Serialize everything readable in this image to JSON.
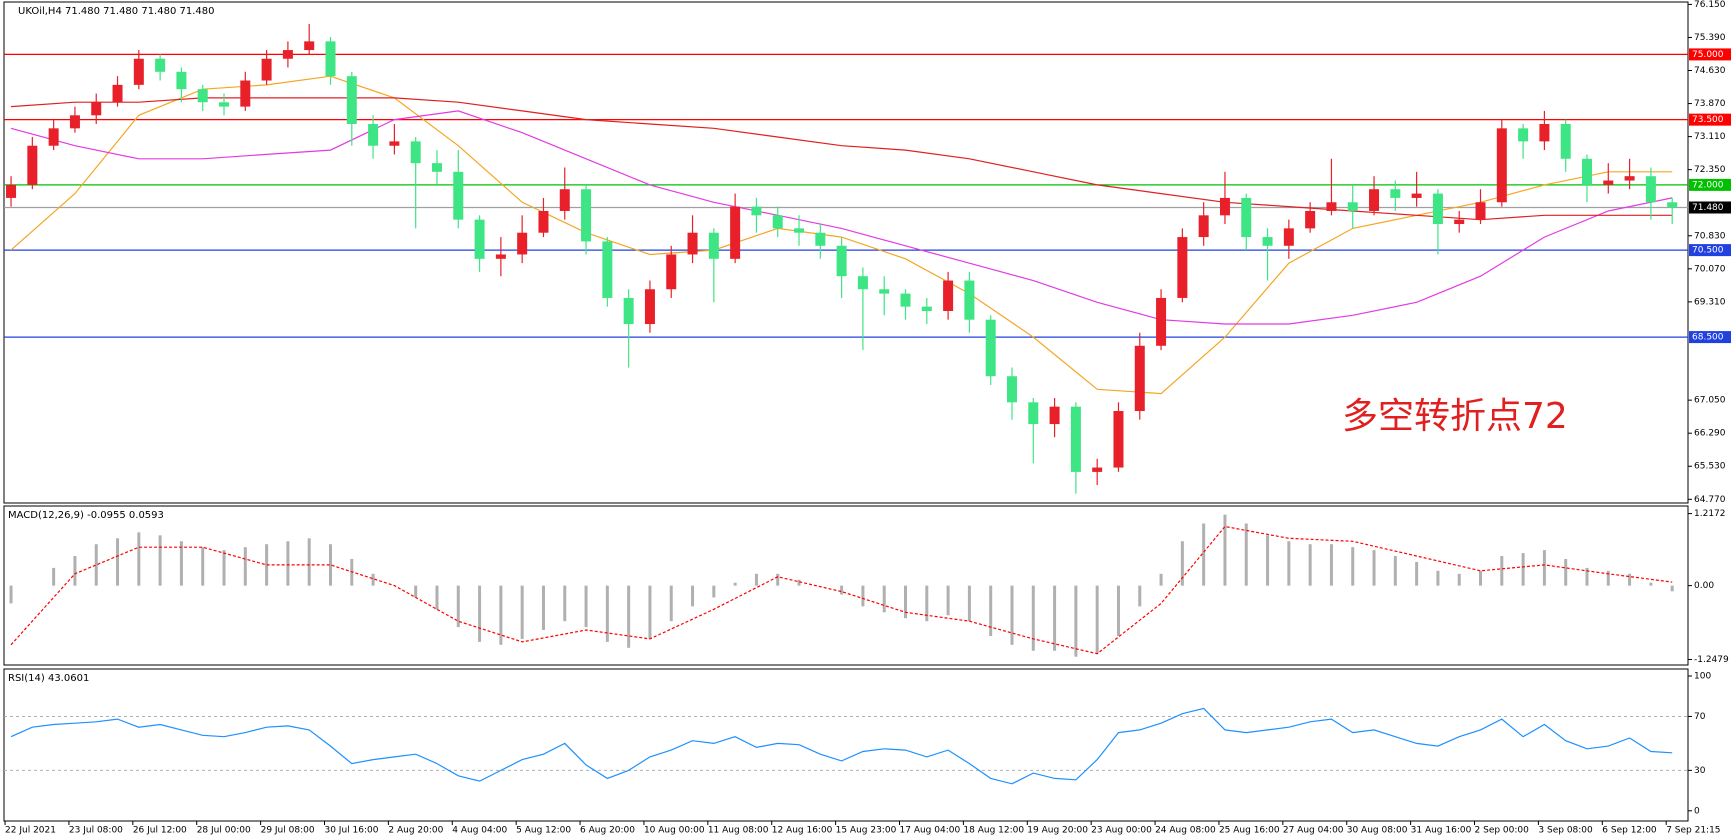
{
  "chart_data": [
    {
      "type": "candlestick",
      "title": "UKOil,H4  71.480 71.480 71.480 71.480",
      "annotation": "多空转折点72",
      "up_color": "#e8202a",
      "down_color": "#3ee584",
      "ohlc": [
        [
          71.7,
          72.2,
          71.5,
          72.0
        ],
        [
          72.0,
          73.1,
          71.9,
          72.9
        ],
        [
          72.9,
          73.5,
          72.8,
          73.3
        ],
        [
          73.3,
          73.8,
          73.2,
          73.6
        ],
        [
          73.6,
          74.1,
          73.4,
          73.9
        ],
        [
          73.9,
          74.5,
          73.8,
          74.3
        ],
        [
          74.3,
          75.1,
          74.2,
          74.9
        ],
        [
          74.9,
          75.0,
          74.4,
          74.6
        ],
        [
          74.6,
          74.7,
          73.9,
          74.2
        ],
        [
          74.2,
          74.3,
          73.7,
          73.9
        ],
        [
          73.9,
          74.1,
          73.6,
          73.8
        ],
        [
          73.8,
          74.6,
          73.7,
          74.4
        ],
        [
          74.4,
          75.1,
          74.3,
          74.9
        ],
        [
          74.9,
          75.3,
          74.7,
          75.1
        ],
        [
          75.1,
          75.7,
          75.0,
          75.3
        ],
        [
          75.3,
          75.4,
          74.3,
          74.5
        ],
        [
          74.5,
          74.6,
          72.9,
          73.4
        ],
        [
          73.4,
          73.6,
          72.6,
          72.9
        ],
        [
          72.9,
          73.4,
          72.7,
          73.0
        ],
        [
          73.0,
          73.1,
          71.0,
          72.5
        ],
        [
          72.5,
          72.8,
          72.0,
          72.3
        ],
        [
          72.3,
          72.8,
          71.0,
          71.2
        ],
        [
          71.2,
          71.3,
          70.0,
          70.3
        ],
        [
          70.3,
          70.8,
          69.9,
          70.4
        ],
        [
          70.4,
          71.3,
          70.2,
          70.9
        ],
        [
          70.9,
          71.7,
          70.8,
          71.4
        ],
        [
          71.4,
          72.4,
          71.2,
          71.9
        ],
        [
          71.9,
          72.0,
          70.4,
          70.7
        ],
        [
          70.7,
          70.8,
          69.2,
          69.4
        ],
        [
          69.4,
          69.6,
          67.8,
          68.8
        ],
        [
          68.8,
          69.8,
          68.6,
          69.6
        ],
        [
          69.6,
          70.6,
          69.4,
          70.4
        ],
        [
          70.4,
          71.3,
          70.2,
          70.9
        ],
        [
          70.9,
          71.0,
          69.3,
          70.3
        ],
        [
          70.3,
          71.8,
          70.2,
          71.5
        ],
        [
          71.5,
          71.7,
          70.9,
          71.3
        ],
        [
          71.3,
          71.5,
          70.8,
          71.0
        ],
        [
          71.0,
          71.3,
          70.6,
          70.9
        ],
        [
          70.9,
          71.1,
          70.3,
          70.6
        ],
        [
          70.6,
          70.8,
          69.4,
          69.9
        ],
        [
          69.9,
          70.1,
          68.2,
          69.6
        ],
        [
          69.6,
          69.9,
          69.0,
          69.5
        ],
        [
          69.5,
          69.6,
          68.9,
          69.2
        ],
        [
          69.2,
          69.4,
          68.8,
          69.1
        ],
        [
          69.1,
          70.0,
          68.9,
          69.8
        ],
        [
          69.8,
          70.0,
          68.6,
          68.9
        ],
        [
          68.9,
          69.0,
          67.4,
          67.6
        ],
        [
          67.6,
          67.8,
          66.6,
          67.0
        ],
        [
          67.0,
          67.1,
          65.6,
          66.5
        ],
        [
          66.5,
          67.1,
          66.2,
          66.9
        ],
        [
          66.9,
          67.0,
          64.9,
          65.4
        ],
        [
          65.4,
          65.7,
          65.1,
          65.5
        ],
        [
          65.5,
          67.0,
          65.4,
          66.8
        ],
        [
          66.8,
          68.6,
          66.6,
          68.3
        ],
        [
          68.3,
          69.6,
          68.2,
          69.4
        ],
        [
          69.4,
          71.0,
          69.3,
          70.8
        ],
        [
          70.8,
          71.6,
          70.6,
          71.3
        ],
        [
          71.3,
          72.3,
          71.1,
          71.7
        ],
        [
          71.7,
          71.8,
          70.5,
          70.8
        ],
        [
          70.8,
          71.0,
          69.8,
          70.6
        ],
        [
          70.6,
          71.2,
          70.3,
          71.0
        ],
        [
          71.0,
          71.6,
          70.9,
          71.4
        ],
        [
          71.4,
          72.6,
          71.3,
          71.6
        ],
        [
          71.6,
          72.0,
          71.0,
          71.4
        ],
        [
          71.4,
          72.2,
          71.3,
          71.9
        ],
        [
          71.9,
          72.1,
          71.4,
          71.7
        ],
        [
          71.7,
          72.3,
          71.5,
          71.8
        ],
        [
          71.8,
          71.9,
          70.4,
          71.1
        ],
        [
          71.1,
          71.4,
          70.9,
          71.2
        ],
        [
          71.2,
          71.9,
          71.1,
          71.6
        ],
        [
          71.6,
          73.5,
          71.5,
          73.3
        ],
        [
          73.3,
          73.4,
          72.6,
          73.0
        ],
        [
          73.0,
          73.7,
          72.8,
          73.4
        ],
        [
          73.4,
          73.5,
          72.3,
          72.6
        ],
        [
          72.6,
          72.7,
          71.6,
          72.0
        ],
        [
          72.0,
          72.5,
          71.8,
          72.1
        ],
        [
          72.1,
          72.6,
          71.9,
          72.2
        ],
        [
          72.2,
          72.4,
          71.2,
          71.6
        ],
        [
          71.6,
          71.7,
          71.1,
          71.48
        ]
      ],
      "ma": [
        {
          "color": "#f5a623",
          "values": [
            70.5,
            71.8,
            73.6,
            74.2,
            74.3,
            74.5,
            74.0,
            72.9,
            71.6,
            70.9,
            70.4,
            70.5,
            71.0,
            70.8,
            70.3,
            69.5,
            68.5,
            67.3,
            67.2,
            68.5,
            70.2,
            71.0,
            71.3,
            71.6,
            72.0,
            72.3,
            72.3
          ]
        },
        {
          "color": "#e23be2",
          "values": [
            73.3,
            72.9,
            72.6,
            72.6,
            72.7,
            72.8,
            73.5,
            73.7,
            73.2,
            72.6,
            72.0,
            71.6,
            71.3,
            71.0,
            70.6,
            70.2,
            69.8,
            69.3,
            68.9,
            68.8,
            68.8,
            69.0,
            69.3,
            69.9,
            70.8,
            71.4,
            71.7
          ]
        },
        {
          "color": "#e02020",
          "values": [
            73.8,
            73.9,
            73.9,
            74.0,
            74.0,
            74.0,
            74.0,
            73.9,
            73.7,
            73.5,
            73.4,
            73.3,
            73.1,
            72.9,
            72.8,
            72.6,
            72.3,
            72.0,
            71.8,
            71.6,
            71.5,
            71.4,
            71.3,
            71.2,
            71.3,
            71.3,
            71.3
          ]
        }
      ],
      "levels": [
        {
          "value": 75.0,
          "label": "75.000",
          "color": "#ff0000"
        },
        {
          "value": 73.5,
          "label": "73.500",
          "color": "#ff0000"
        },
        {
          "value": 72.0,
          "label": "72.000",
          "color": "#00c000"
        },
        {
          "value": 70.5,
          "label": "70.500",
          "color": "#2040e0"
        },
        {
          "value": 68.5,
          "label": "68.500",
          "color": "#2040e0"
        },
        {
          "value": 71.48,
          "label": "71.480",
          "color": "#a0a0a0"
        }
      ],
      "ylim": [
        64.77,
        76.15
      ],
      "yticks": [
        {
          "value": 76.15,
          "label": "76.150"
        },
        {
          "value": 75.39,
          "label": "75.390"
        },
        {
          "value": 74.63,
          "label": "74.630"
        },
        {
          "value": 73.87,
          "label": "73.870"
        },
        {
          "value": 73.11,
          "label": "73.110"
        },
        {
          "value": 72.35,
          "label": "72.350"
        },
        {
          "value": 70.83,
          "label": "70.830"
        },
        {
          "value": 70.07,
          "label": "70.070"
        },
        {
          "value": 69.31,
          "label": "69.310"
        },
        {
          "value": 67.05,
          "label": "67.050"
        },
        {
          "value": 66.29,
          "label": "66.290"
        },
        {
          "value": 65.53,
          "label": "65.530"
        },
        {
          "value": 64.77,
          "label": "64.770"
        }
      ],
      "xticks": [
        "22 Jul 2021",
        "23 Jul 08:00",
        "26 Jul 12:00",
        "28 Jul 00:00",
        "29 Jul 08:00",
        "30 Jul 16:00",
        "2 Aug 20:00",
        "4 Aug 04:00",
        "5 Aug 12:00",
        "6 Aug 20:00",
        "10 Aug 00:00",
        "11 Aug 08:00",
        "12 Aug 16:00",
        "15 Aug 23:00",
        "17 Aug 04:00",
        "18 Aug 12:00",
        "19 Aug 20:00",
        "23 Aug 00:00",
        "24 Aug 08:00",
        "25 Aug 16:00",
        "27 Aug 04:00",
        "30 Aug 08:00",
        "31 Aug 16:00",
        "2 Sep 00:00",
        "3 Sep 08:00",
        "6 Sep 12:00",
        "7 Sep 21:15"
      ]
    },
    {
      "type": "macd",
      "title": "MACD(12,26,9) -0.0955 0.0593",
      "series": [
        {
          "color": "#b0b0b0",
          "values": [
            -0.3,
            0.0,
            0.3,
            0.5,
            0.7,
            0.8,
            0.9,
            0.85,
            0.75,
            0.65,
            0.6,
            0.65,
            0.7,
            0.75,
            0.8,
            0.7,
            0.45,
            0.2,
            0.0,
            -0.2,
            -0.4,
            -0.7,
            -0.95,
            -1.0,
            -0.9,
            -0.75,
            -0.6,
            -0.7,
            -0.95,
            -1.05,
            -0.9,
            -0.6,
            -0.35,
            -0.2,
            0.05,
            0.2,
            0.2,
            0.1,
            0.0,
            -0.15,
            -0.35,
            -0.45,
            -0.55,
            -0.6,
            -0.5,
            -0.6,
            -0.85,
            -1.0,
            -1.1,
            -1.1,
            -1.2,
            -1.15,
            -0.85,
            -0.35,
            0.2,
            0.75,
            1.05,
            1.2,
            1.05,
            0.85,
            0.75,
            0.7,
            0.7,
            0.65,
            0.6,
            0.5,
            0.4,
            0.25,
            0.2,
            0.25,
            0.5,
            0.55,
            0.6,
            0.45,
            0.3,
            0.25,
            0.2,
            0.05,
            -0.0955
          ]
        },
        {
          "color": "#ff0000",
          "values": [
            -1.0,
            0.2,
            0.65,
            0.65,
            0.35,
            0.35,
            0.0,
            -0.6,
            -0.95,
            -0.75,
            -0.9,
            -0.4,
            0.15,
            -0.1,
            -0.45,
            -0.6,
            -0.9,
            -1.15,
            -0.3,
            1.0,
            0.8,
            0.75,
            0.5,
            0.25,
            0.35,
            0.2,
            0.0593
          ]
        }
      ],
      "ylim": [
        -1.2479,
        1.2172
      ],
      "yticks": [
        1.2172,
        {
          "value": 0,
          "label": "0.00"
        },
        -1.2479
      ]
    },
    {
      "type": "line",
      "title": "RSI(14) 43.0601",
      "color": "#1e90ff",
      "values": [
        55,
        62,
        64,
        65,
        66,
        68,
        62,
        64,
        60,
        56,
        55,
        58,
        62,
        63,
        60,
        48,
        35,
        38,
        40,
        42,
        35,
        26,
        22,
        30,
        38,
        42,
        50,
        34,
        24,
        30,
        40,
        45,
        52,
        50,
        55,
        47,
        50,
        49,
        42,
        37,
        44,
        46,
        45,
        40,
        45,
        35,
        24,
        20,
        28,
        24,
        23,
        38,
        58,
        60,
        65,
        72,
        76,
        60,
        58,
        60,
        62,
        66,
        68,
        58,
        60,
        55,
        50,
        48,
        55,
        60,
        68,
        55,
        64,
        52,
        46,
        48,
        54,
        44,
        43.0601
      ],
      "ylim": [
        0,
        100
      ],
      "yticks": [
        100,
        70,
        30,
        0
      ],
      "levels": [
        70,
        30
      ]
    }
  ]
}
